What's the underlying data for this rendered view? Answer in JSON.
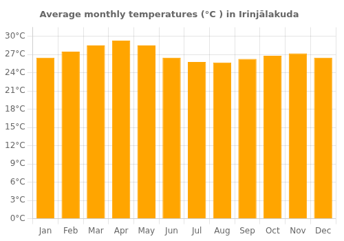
{
  "chart_data": {
    "type": "bar",
    "title": "Average monthly temperatures (°C ) in Irinjālakuda",
    "categories": [
      "Jan",
      "Feb",
      "Mar",
      "Apr",
      "May",
      "Jun",
      "Jul",
      "Aug",
      "Sep",
      "Oct",
      "Nov",
      "Dec"
    ],
    "values": [
      26.5,
      27.5,
      28.5,
      29.3,
      28.5,
      26.5,
      25.8,
      25.7,
      26.3,
      26.8,
      27.2,
      26.5
    ],
    "color": "#FFA500",
    "ylim": [
      0,
      31.5
    ],
    "yticks": [
      {
        "value": 0,
        "label": "0°C"
      },
      {
        "value": 3,
        "label": "3°C"
      },
      {
        "value": 6,
        "label": "6°C"
      },
      {
        "value": 9,
        "label": "9°C"
      },
      {
        "value": 12,
        "label": "12°C"
      },
      {
        "value": 15,
        "label": "15°C"
      },
      {
        "value": 18,
        "label": "18°C"
      },
      {
        "value": 21,
        "label": "21°C"
      },
      {
        "value": 24,
        "label": "24°C"
      },
      {
        "value": 27,
        "label": "27°C"
      },
      {
        "value": 30,
        "label": "30°C"
      }
    ],
    "grid": true
  }
}
